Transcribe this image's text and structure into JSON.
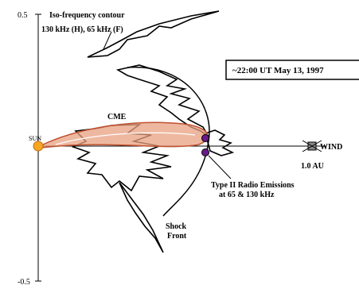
{
  "axis": {
    "top_label": "0.5",
    "bottom_label": "-0.5"
  },
  "contour": {
    "title": "Iso-frequency contour",
    "frequencies": "130 kHz (H), 65 kHz (F)"
  },
  "timestamp": "~22:00 UT May 13, 1997",
  "cme": "CME",
  "sun": "SUN",
  "wind": {
    "label": "WIND",
    "distance": "1.0 AU"
  },
  "emissions": {
    "line1": "Type II Radio Emissions",
    "line2": "at 65 & 130 kHz"
  },
  "shock": {
    "line1": "Shock",
    "line2": "Front"
  }
}
